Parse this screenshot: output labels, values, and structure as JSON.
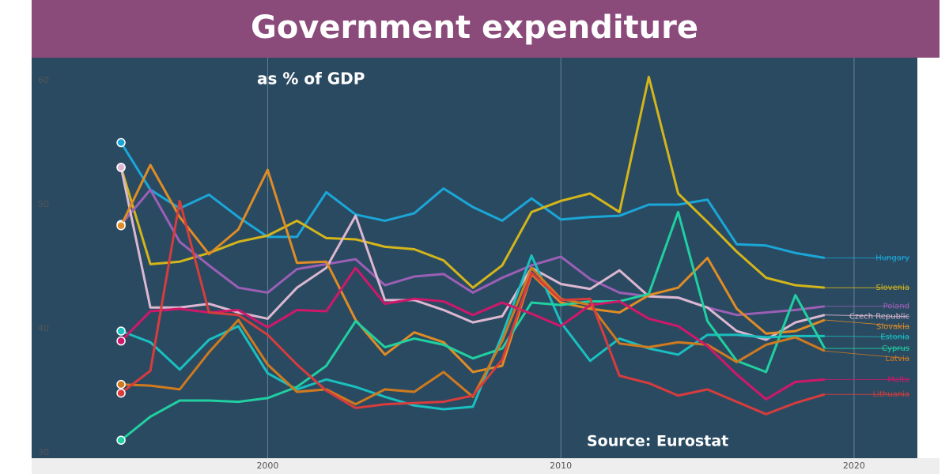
{
  "chart_data": {
    "type": "line",
    "title": "Government expenditure",
    "subtitle": "as % of GDP",
    "source": "Source: Eurostat",
    "x": [
      1995,
      1996,
      1997,
      1998,
      1999,
      2000,
      2001,
      2002,
      2003,
      2004,
      2005,
      2006,
      2007,
      2008,
      2009,
      2010,
      2011,
      2012,
      2013,
      2014,
      2015,
      2016,
      2017,
      2018,
      2019
    ],
    "xlim": [
      1991.95,
      2022.16
    ],
    "xticks": [
      2000,
      2010,
      2020
    ],
    "ylim": [
      29.55,
      61.85
    ],
    "yticks": [
      30,
      40,
      50,
      60
    ],
    "grid": true,
    "series": [
      {
        "name": "Hungary",
        "color": "#1aa7d8",
        "values": [
          55.0,
          51.2,
          49.7,
          50.8,
          49.0,
          47.4,
          47.4,
          51.0,
          49.2,
          48.7,
          49.3,
          51.3,
          49.8,
          48.7,
          50.5,
          48.8,
          49.0,
          49.1,
          50.0,
          50.0,
          50.4,
          46.8,
          46.7,
          46.1,
          45.7
        ]
      },
      {
        "name": "Slovenia",
        "color": "#d4b51a",
        "values": [
          53.0,
          45.2,
          45.4,
          46.1,
          47.0,
          47.5,
          48.7,
          47.3,
          47.2,
          46.6,
          46.4,
          45.5,
          43.3,
          45.1,
          49.4,
          50.3,
          50.9,
          49.4,
          60.3,
          50.9,
          48.6,
          46.2,
          44.1,
          43.5,
          43.3
        ]
      },
      {
        "name": "Poland",
        "color": "#9b5fb5",
        "values": [
          48.4,
          51.2,
          47.0,
          45.1,
          43.3,
          42.9,
          44.8,
          45.2,
          45.6,
          43.5,
          44.2,
          44.4,
          42.9,
          44.1,
          45.1,
          45.8,
          44.0,
          42.9,
          42.6,
          42.5,
          41.7,
          41.1,
          41.3,
          41.5,
          41.8
        ]
      },
      {
        "name": "Czech Republic",
        "color": "#dcb8d0",
        "values": [
          53.0,
          41.7,
          41.7,
          42.0,
          41.3,
          40.8,
          43.3,
          44.9,
          49.1,
          42.3,
          42.3,
          41.5,
          40.5,
          41.0,
          44.9,
          43.6,
          43.2,
          44.7,
          42.6,
          42.5,
          41.7,
          39.8,
          39.1,
          40.5,
          41.1
        ]
      },
      {
        "name": "Slovakia",
        "color": "#e08c24",
        "values": [
          48.3,
          53.2,
          49.0,
          46.0,
          48.0,
          52.8,
          45.3,
          45.4,
          40.7,
          37.9,
          39.7,
          38.9,
          36.5,
          37.0,
          44.4,
          42.1,
          41.6,
          41.3,
          42.7,
          43.3,
          45.7,
          41.6,
          39.6,
          39.8,
          40.7
        ]
      },
      {
        "name": "Estonia",
        "color": "#1abfbf",
        "values": [
          39.8,
          38.9,
          36.7,
          39.1,
          40.2,
          36.4,
          35.1,
          35.9,
          35.3,
          34.5,
          33.8,
          33.5,
          33.7,
          39.5,
          45.9,
          40.5,
          37.4,
          39.2,
          38.4,
          37.9,
          39.5,
          39.5,
          39.3,
          39.4,
          39.4
        ]
      },
      {
        "name": "Cyprus",
        "color": "#20d0a0",
        "values": [
          31.0,
          32.9,
          34.2,
          34.2,
          34.1,
          34.4,
          35.3,
          37.0,
          40.6,
          38.5,
          39.2,
          38.7,
          37.6,
          38.4,
          42.1,
          41.9,
          42.2,
          42.2,
          42.8,
          49.4,
          40.6,
          37.4,
          36.5,
          42.7,
          38.4
        ]
      },
      {
        "name": "Latvia",
        "color": "#d07a1e",
        "values": [
          35.5,
          35.4,
          35.1,
          38.1,
          40.7,
          37.1,
          34.9,
          35.1,
          33.9,
          35.1,
          34.9,
          36.5,
          34.5,
          39.0,
          44.9,
          42.4,
          41.9,
          38.8,
          38.5,
          38.9,
          38.7,
          37.3,
          38.7,
          39.3,
          38.2
        ]
      },
      {
        "name": "Malta",
        "color": "#d0186a",
        "values": [
          39.0,
          41.4,
          41.6,
          41.3,
          41.5,
          40.1,
          41.5,
          41.4,
          44.9,
          42.0,
          42.4,
          42.2,
          41.1,
          42.1,
          41.2,
          40.2,
          41.9,
          42.2,
          40.8,
          40.2,
          38.6,
          36.3,
          34.3,
          35.7,
          35.9
        ]
      },
      {
        "name": "Lithuania",
        "color": "#d83c3c",
        "values": [
          34.8,
          36.6,
          50.3,
          41.3,
          41.1,
          39.5,
          37.1,
          35.0,
          33.6,
          33.9,
          34.0,
          34.1,
          34.6,
          37.5,
          44.5,
          42.3,
          42.4,
          36.2,
          35.6,
          34.6,
          35.1,
          34.1,
          33.1,
          34.0,
          34.7
        ]
      }
    ]
  }
}
